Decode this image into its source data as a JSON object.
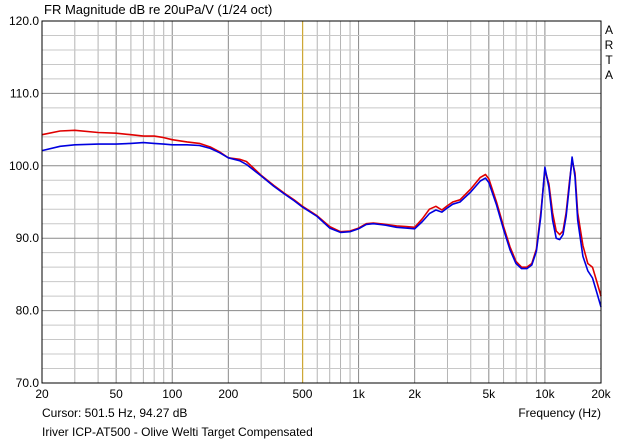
{
  "chart_data": {
    "type": "line",
    "title": "FR Magnitude dB re 20uPa/V (1/24 oct)",
    "watermark": [
      "A",
      "R",
      "T",
      "A"
    ],
    "xlabel": "Frequency (Hz)",
    "ylabel": "",
    "x_scale": "log",
    "xlim": [
      20,
      20000
    ],
    "ylim": [
      70,
      120
    ],
    "grid": true,
    "x_ticks": [
      {
        "value": 20,
        "label": "20"
      },
      {
        "value": 50,
        "label": "50"
      },
      {
        "value": 100,
        "label": "100"
      },
      {
        "value": 200,
        "label": "200"
      },
      {
        "value": 500,
        "label": "500"
      },
      {
        "value": 1000,
        "label": "1k"
      },
      {
        "value": 2000,
        "label": "2k"
      },
      {
        "value": 5000,
        "label": "5k"
      },
      {
        "value": 10000,
        "label": "10k"
      },
      {
        "value": 20000,
        "label": "20k"
      }
    ],
    "y_ticks": [
      {
        "value": 70,
        "label": "70.0"
      },
      {
        "value": 80,
        "label": "80.0"
      },
      {
        "value": 90,
        "label": "90.0"
      },
      {
        "value": 100,
        "label": "100.0"
      },
      {
        "value": 110,
        "label": "110.0"
      },
      {
        "value": 120,
        "label": "120.0"
      }
    ],
    "cursor": {
      "frequency": 501.5,
      "color": "#e0b020"
    },
    "cursor_text": "Cursor: 501.5 Hz, 94.27 dB",
    "caption": "Iriver ICP-AT500 - Olive Welti Target Compensated",
    "series": [
      {
        "color": "#e00000",
        "points": [
          [
            20,
            104.3
          ],
          [
            25,
            104.8
          ],
          [
            30,
            104.9
          ],
          [
            40,
            104.6
          ],
          [
            50,
            104.5
          ],
          [
            60,
            104.3
          ],
          [
            70,
            104.1
          ],
          [
            80,
            104.1
          ],
          [
            90,
            103.9
          ],
          [
            100,
            103.6
          ],
          [
            120,
            103.3
          ],
          [
            140,
            103.1
          ],
          [
            160,
            102.6
          ],
          [
            180,
            101.9
          ],
          [
            200,
            101.1
          ],
          [
            230,
            100.9
          ],
          [
            250,
            100.6
          ],
          [
            300,
            98.7
          ],
          [
            350,
            97.3
          ],
          [
            400,
            96.2
          ],
          [
            450,
            95.3
          ],
          [
            500,
            94.4
          ],
          [
            600,
            93.1
          ],
          [
            700,
            91.6
          ],
          [
            800,
            90.9
          ],
          [
            900,
            91.0
          ],
          [
            1000,
            91.4
          ],
          [
            1100,
            92.0
          ],
          [
            1200,
            92.1
          ],
          [
            1400,
            91.9
          ],
          [
            1600,
            91.7
          ],
          [
            1800,
            91.6
          ],
          [
            2000,
            91.5
          ],
          [
            2200,
            92.7
          ],
          [
            2400,
            94.0
          ],
          [
            2600,
            94.4
          ],
          [
            2800,
            93.9
          ],
          [
            3000,
            94.5
          ],
          [
            3200,
            95.0
          ],
          [
            3500,
            95.3
          ],
          [
            4000,
            96.8
          ],
          [
            4500,
            98.4
          ],
          [
            4800,
            98.8
          ],
          [
            5000,
            98.2
          ],
          [
            5500,
            95.0
          ],
          [
            6000,
            91.6
          ],
          [
            6500,
            88.8
          ],
          [
            7000,
            86.8
          ],
          [
            7500,
            86.0
          ],
          [
            8000,
            86.0
          ],
          [
            8500,
            86.5
          ],
          [
            9000,
            88.5
          ],
          [
            9500,
            93.5
          ],
          [
            10000,
            99.4
          ],
          [
            10500,
            97.5
          ],
          [
            11000,
            93.5
          ],
          [
            11500,
            91.0
          ],
          [
            12000,
            90.5
          ],
          [
            12500,
            91.0
          ],
          [
            13000,
            93.5
          ],
          [
            13500,
            97.5
          ],
          [
            14000,
            100.8
          ],
          [
            14500,
            99.0
          ],
          [
            15000,
            93.5
          ],
          [
            16000,
            89.0
          ],
          [
            17000,
            86.5
          ],
          [
            18000,
            86.0
          ],
          [
            19000,
            84.0
          ],
          [
            20000,
            82.0
          ]
        ]
      },
      {
        "color": "#0000e0",
        "points": [
          [
            20,
            102.1
          ],
          [
            25,
            102.7
          ],
          [
            30,
            102.9
          ],
          [
            40,
            103.0
          ],
          [
            50,
            103.0
          ],
          [
            60,
            103.1
          ],
          [
            70,
            103.2
          ],
          [
            80,
            103.1
          ],
          [
            90,
            103.0
          ],
          [
            100,
            102.9
          ],
          [
            120,
            102.9
          ],
          [
            140,
            102.8
          ],
          [
            160,
            102.4
          ],
          [
            180,
            101.8
          ],
          [
            200,
            101.1
          ],
          [
            230,
            100.7
          ],
          [
            250,
            100.2
          ],
          [
            300,
            98.6
          ],
          [
            350,
            97.2
          ],
          [
            400,
            96.1
          ],
          [
            450,
            95.2
          ],
          [
            500,
            94.3
          ],
          [
            600,
            93.0
          ],
          [
            700,
            91.4
          ],
          [
            800,
            90.8
          ],
          [
            900,
            90.9
          ],
          [
            1000,
            91.3
          ],
          [
            1100,
            91.9
          ],
          [
            1200,
            92.0
          ],
          [
            1400,
            91.8
          ],
          [
            1600,
            91.5
          ],
          [
            1800,
            91.4
          ],
          [
            2000,
            91.3
          ],
          [
            2200,
            92.3
          ],
          [
            2400,
            93.4
          ],
          [
            2600,
            93.9
          ],
          [
            2800,
            93.6
          ],
          [
            3000,
            94.2
          ],
          [
            3200,
            94.7
          ],
          [
            3500,
            95.0
          ],
          [
            4000,
            96.4
          ],
          [
            4500,
            97.9
          ],
          [
            4800,
            98.3
          ],
          [
            5000,
            97.7
          ],
          [
            5500,
            94.6
          ],
          [
            6000,
            91.2
          ],
          [
            6500,
            88.4
          ],
          [
            7000,
            86.5
          ],
          [
            7500,
            85.8
          ],
          [
            8000,
            85.8
          ],
          [
            8500,
            86.3
          ],
          [
            9000,
            88.2
          ],
          [
            9500,
            93.0
          ],
          [
            10000,
            99.8
          ],
          [
            10500,
            97.0
          ],
          [
            11000,
            92.5
          ],
          [
            11500,
            90.0
          ],
          [
            12000,
            89.8
          ],
          [
            12500,
            90.5
          ],
          [
            13000,
            93.0
          ],
          [
            13500,
            97.0
          ],
          [
            14000,
            101.2
          ],
          [
            14500,
            98.5
          ],
          [
            15000,
            92.5
          ],
          [
            16000,
            87.5
          ],
          [
            17000,
            85.5
          ],
          [
            18000,
            84.5
          ],
          [
            19000,
            82.5
          ],
          [
            20000,
            80.5
          ]
        ]
      }
    ]
  }
}
